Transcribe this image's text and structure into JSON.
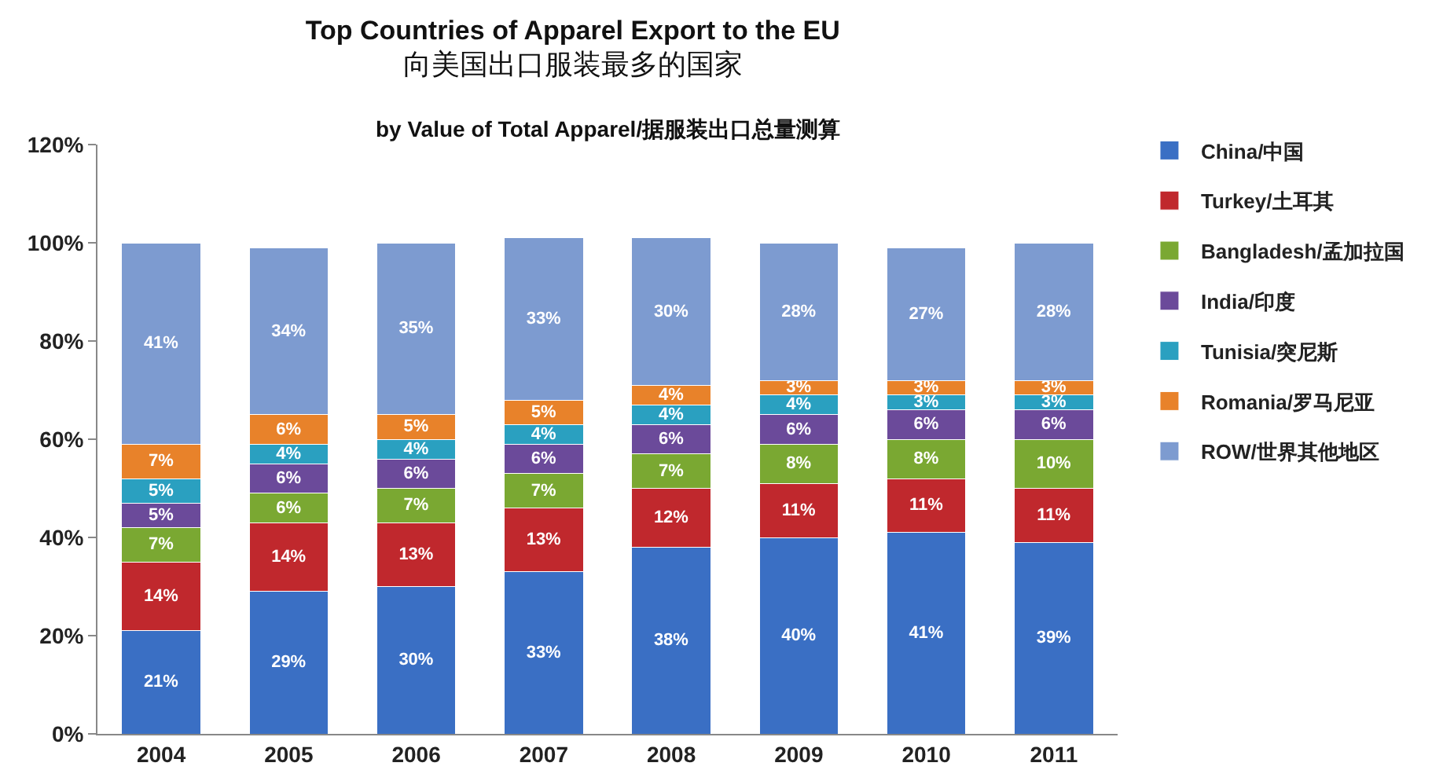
{
  "chart_data": {
    "type": "bar",
    "title": "Top Countries of Apparel Export to the EU",
    "subtitle": "向美国出口服装最多的国家",
    "annotations": [
      "by Value of Total Apparel/据服装出口总量测算"
    ],
    "categories": [
      "2004",
      "2005",
      "2006",
      "2007",
      "2008",
      "2009",
      "2010",
      "2011"
    ],
    "series": [
      {
        "name": "China/中国",
        "color": "#3a6fc4",
        "values": [
          21,
          29,
          30,
          33,
          38,
          40,
          41,
          39
        ],
        "value_labels": [
          "21%",
          "29%",
          "30%",
          "33%",
          "38%",
          "40%",
          "41%",
          "39%"
        ]
      },
      {
        "name": "Turkey/土耳其",
        "color": "#c0282d",
        "values": [
          14,
          14,
          13,
          13,
          12,
          11,
          11,
          11
        ],
        "value_labels": [
          "14%",
          "14%",
          "13%",
          "13%",
          "12%",
          "11%",
          "11%",
          "11%"
        ]
      },
      {
        "name": "Bangladesh/孟加拉国",
        "color": "#7aa832",
        "values": [
          7,
          6,
          7,
          7,
          7,
          8,
          8,
          10
        ],
        "value_labels": [
          "7%",
          "6%",
          "7%",
          "7%",
          "7%",
          "8%",
          "8%",
          "10%"
        ]
      },
      {
        "name": "India/印度",
        "color": "#6b4a9a",
        "values": [
          5,
          6,
          6,
          6,
          6,
          6,
          6,
          6
        ],
        "value_labels": [
          "5%",
          "6%",
          "6%",
          "6%",
          "6%",
          "6%",
          "6%",
          "6%"
        ]
      },
      {
        "name": "Tunisia/突尼斯",
        "color": "#2aa0c0",
        "values": [
          5,
          4,
          4,
          4,
          4,
          4,
          3,
          3
        ],
        "value_labels": [
          "5%",
          "4%",
          "4%",
          "4%",
          "4%",
          "4%",
          "3%",
          "3%"
        ]
      },
      {
        "name": "Romania/罗马尼亚",
        "color": "#e8822a",
        "values": [
          7,
          6,
          5,
          5,
          4,
          3,
          3,
          3
        ],
        "value_labels": [
          "7%",
          "6%",
          "5%",
          "5%",
          "4%",
          "3%",
          "3%",
          "3%"
        ]
      },
      {
        "name": "ROW/世界其他地区",
        "color": "#7d9bd0",
        "values": [
          41,
          34,
          35,
          33,
          30,
          28,
          27,
          28
        ],
        "value_labels": [
          "41%",
          "34%",
          "35%",
          "33%",
          "30%",
          "28%",
          "27%",
          "28%"
        ]
      }
    ],
    "stacked": true,
    "ylim": [
      0,
      120
    ],
    "yticks": [
      {
        "value": 0,
        "label": "0%"
      },
      {
        "value": 20,
        "label": "20%"
      },
      {
        "value": 40,
        "label": "40%"
      },
      {
        "value": 60,
        "label": "60%"
      },
      {
        "value": 80,
        "label": "80%"
      },
      {
        "value": 100,
        "label": "100%"
      },
      {
        "value": 120,
        "label": "120%"
      }
    ],
    "grid": false,
    "legend": "right"
  }
}
